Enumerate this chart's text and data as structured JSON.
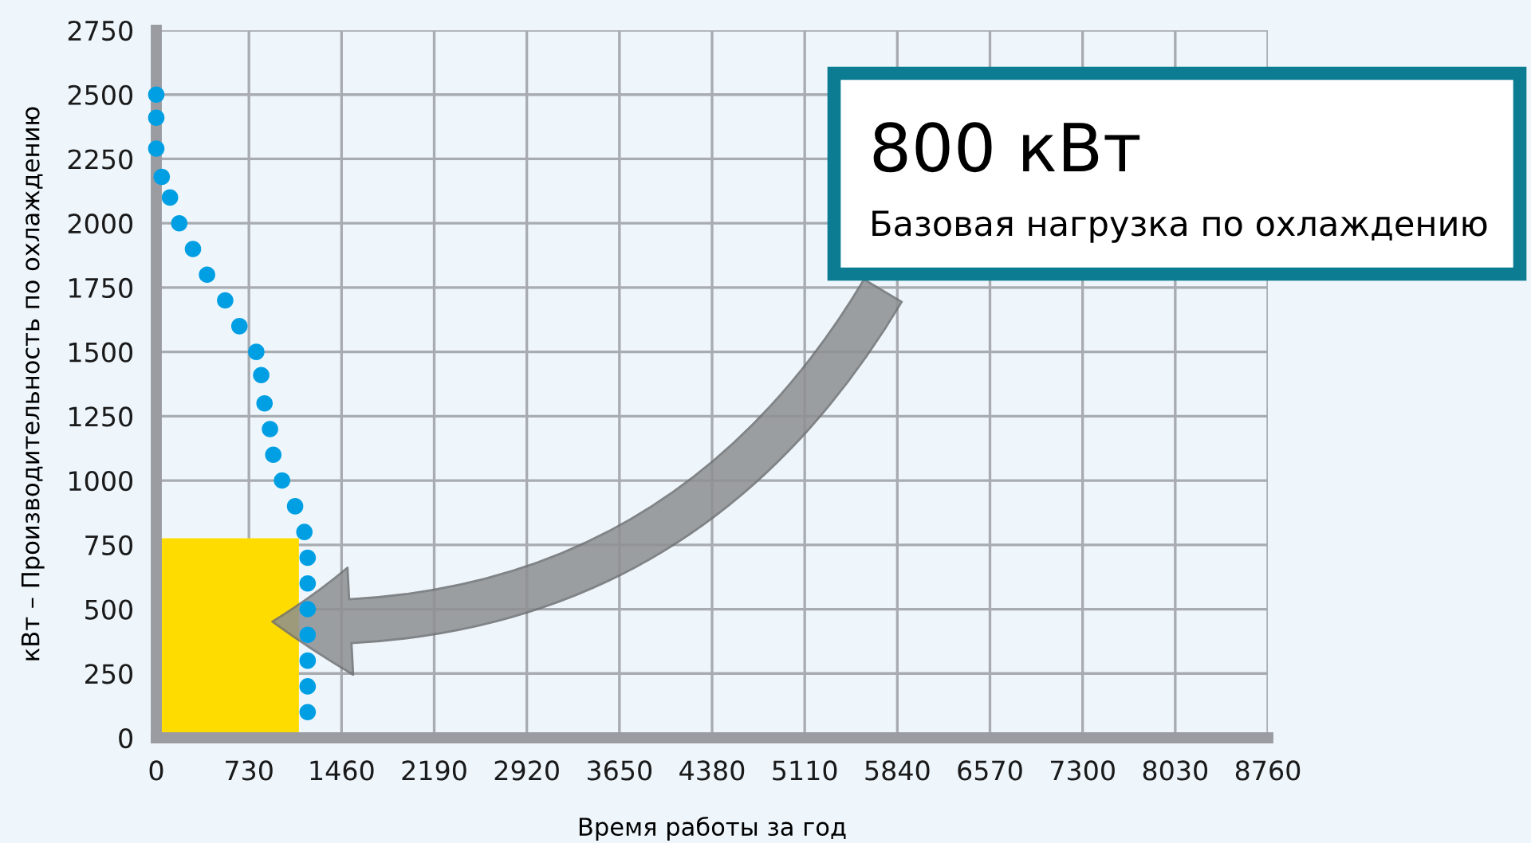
{
  "chart_data": {
    "type": "scatter",
    "xlabel": "Время работы за год",
    "ylabel": "кВт – Производительность по охлаждению",
    "xlim": [
      0,
      8760
    ],
    "xticks": [
      0,
      730,
      1460,
      2190,
      2920,
      3650,
      4380,
      5110,
      5840,
      6570,
      7300,
      8030,
      8760
    ],
    "ylim": [
      0,
      2750
    ],
    "yticks": [
      0,
      250,
      500,
      750,
      1000,
      1250,
      1500,
      1750,
      2000,
      2250,
      2500,
      2750
    ],
    "grid": true,
    "series": [
      {
        "type": "area",
        "color": "#ffdc00",
        "x": [
          0,
          1124
        ],
        "values": [
          776,
          776
        ]
      },
      {
        "color": "#009fe3",
        "marker": "circle",
        "x": [
          0,
          0,
          0,
          43,
          108,
          181,
          289,
          400,
          543,
          655,
          788,
          827,
          853,
          896,
          922,
          991,
          1094,
          1167,
          1193,
          1193,
          1193,
          1193,
          1193,
          1193,
          1193
        ],
        "values": [
          2500,
          2410,
          2290,
          2180,
          2100,
          2000,
          1900,
          1800,
          1700,
          1600,
          1500,
          1410,
          1300,
          1200,
          1100,
          1000,
          900,
          800,
          700,
          600,
          500,
          400,
          300,
          200,
          100
        ]
      }
    ],
    "annotations": [
      "800 кВт",
      "Базовая нагрузка по охлаждению"
    ]
  }
}
